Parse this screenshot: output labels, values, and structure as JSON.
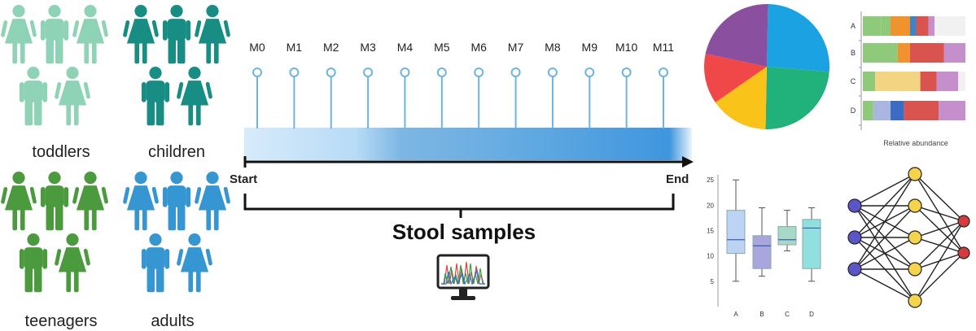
{
  "groups": [
    {
      "label": "toddlers",
      "color": "#8fd3b6"
    },
    {
      "label": "children",
      "color": "#178d84"
    },
    {
      "label": "teenagers",
      "color": "#4c9a3e"
    },
    {
      "label": "adults",
      "color": "#3596d2"
    }
  ],
  "timeline": {
    "months": [
      "M0",
      "M1",
      "M2",
      "M3",
      "M4",
      "M5",
      "M6",
      "M7",
      "M8",
      "M9",
      "M10",
      "M11"
    ],
    "start_label": "Start",
    "end_label": "End",
    "samples_label": "Stool samples",
    "stem_color": "#6fb4dc"
  },
  "icons": {
    "monitor": "monitor-chromatogram-icon",
    "network": "neural-network-icon"
  },
  "chart_data": [
    {
      "type": "pie",
      "slices": [
        {
          "color": "#1aa2e2",
          "value": 26
        },
        {
          "color": "#20b27a",
          "value": 24
        },
        {
          "color": "#f9c31a",
          "value": 15
        },
        {
          "color": "#f04848",
          "value": 13
        },
        {
          "color": "#8b4fa0",
          "value": 22
        }
      ]
    },
    {
      "type": "bar",
      "stacked": true,
      "categories": [
        "A",
        "B",
        "C",
        "D"
      ],
      "xlabel": "Relative abundance",
      "rows": [
        [
          {
            "c": "#8fc97a",
            "v": 0.18
          },
          {
            "c": "#8fc97a",
            "v": 0.09
          },
          {
            "c": "#f0922d",
            "v": 0.19
          },
          {
            "c": "#3c86c7",
            "v": 0.06
          },
          {
            "c": "#d9534f",
            "v": 0.12
          },
          {
            "c": "#c48fca",
            "v": 0.06
          },
          {
            "c": "#f1f1f1",
            "v": 0.3
          }
        ],
        [
          {
            "c": "#8fc97a",
            "v": 0.34
          },
          {
            "c": "#f0922d",
            "v": 0.12
          },
          {
            "c": "#d9534f",
            "v": 0.33
          },
          {
            "c": "#c48fca",
            "v": 0.21
          }
        ],
        [
          {
            "c": "#8fc97a",
            "v": 0.12
          },
          {
            "c": "#f2d483",
            "v": 0.44
          },
          {
            "c": "#d9534f",
            "v": 0.16
          },
          {
            "c": "#c48fca",
            "v": 0.21
          },
          {
            "c": "#f1f1f1",
            "v": 0.07
          }
        ],
        [
          {
            "c": "#8fc97a",
            "v": 0.1
          },
          {
            "c": "#a8b6e0",
            "v": 0.17
          },
          {
            "c": "#3c6bc4",
            "v": 0.13
          },
          {
            "c": "#d9534f",
            "v": 0.34
          },
          {
            "c": "#c48fca",
            "v": 0.26
          }
        ]
      ]
    },
    {
      "type": "box",
      "categories": [
        "A",
        "B",
        "C",
        "D"
      ],
      "yticks": [
        "5",
        "10",
        "15",
        "20",
        "25"
      ],
      "ylim": [
        0,
        26
      ],
      "boxes": [
        {
          "min": 5,
          "q1": 10.5,
          "median": 13.2,
          "q3": 19,
          "max": 25,
          "color": "#bcd3f3"
        },
        {
          "min": 6,
          "q1": 7.5,
          "median": 12,
          "q3": 14,
          "max": 19.5,
          "color": "#a9a5dd"
        },
        {
          "min": 11,
          "q1": 12.2,
          "median": 13.2,
          "q3": 15.8,
          "max": 19,
          "color": "#a8d8c8"
        },
        {
          "min": 5,
          "q1": 7.5,
          "median": 15.5,
          "q3": 17.2,
          "max": 19.5,
          "color": "#8fe0df"
        }
      ]
    }
  ]
}
